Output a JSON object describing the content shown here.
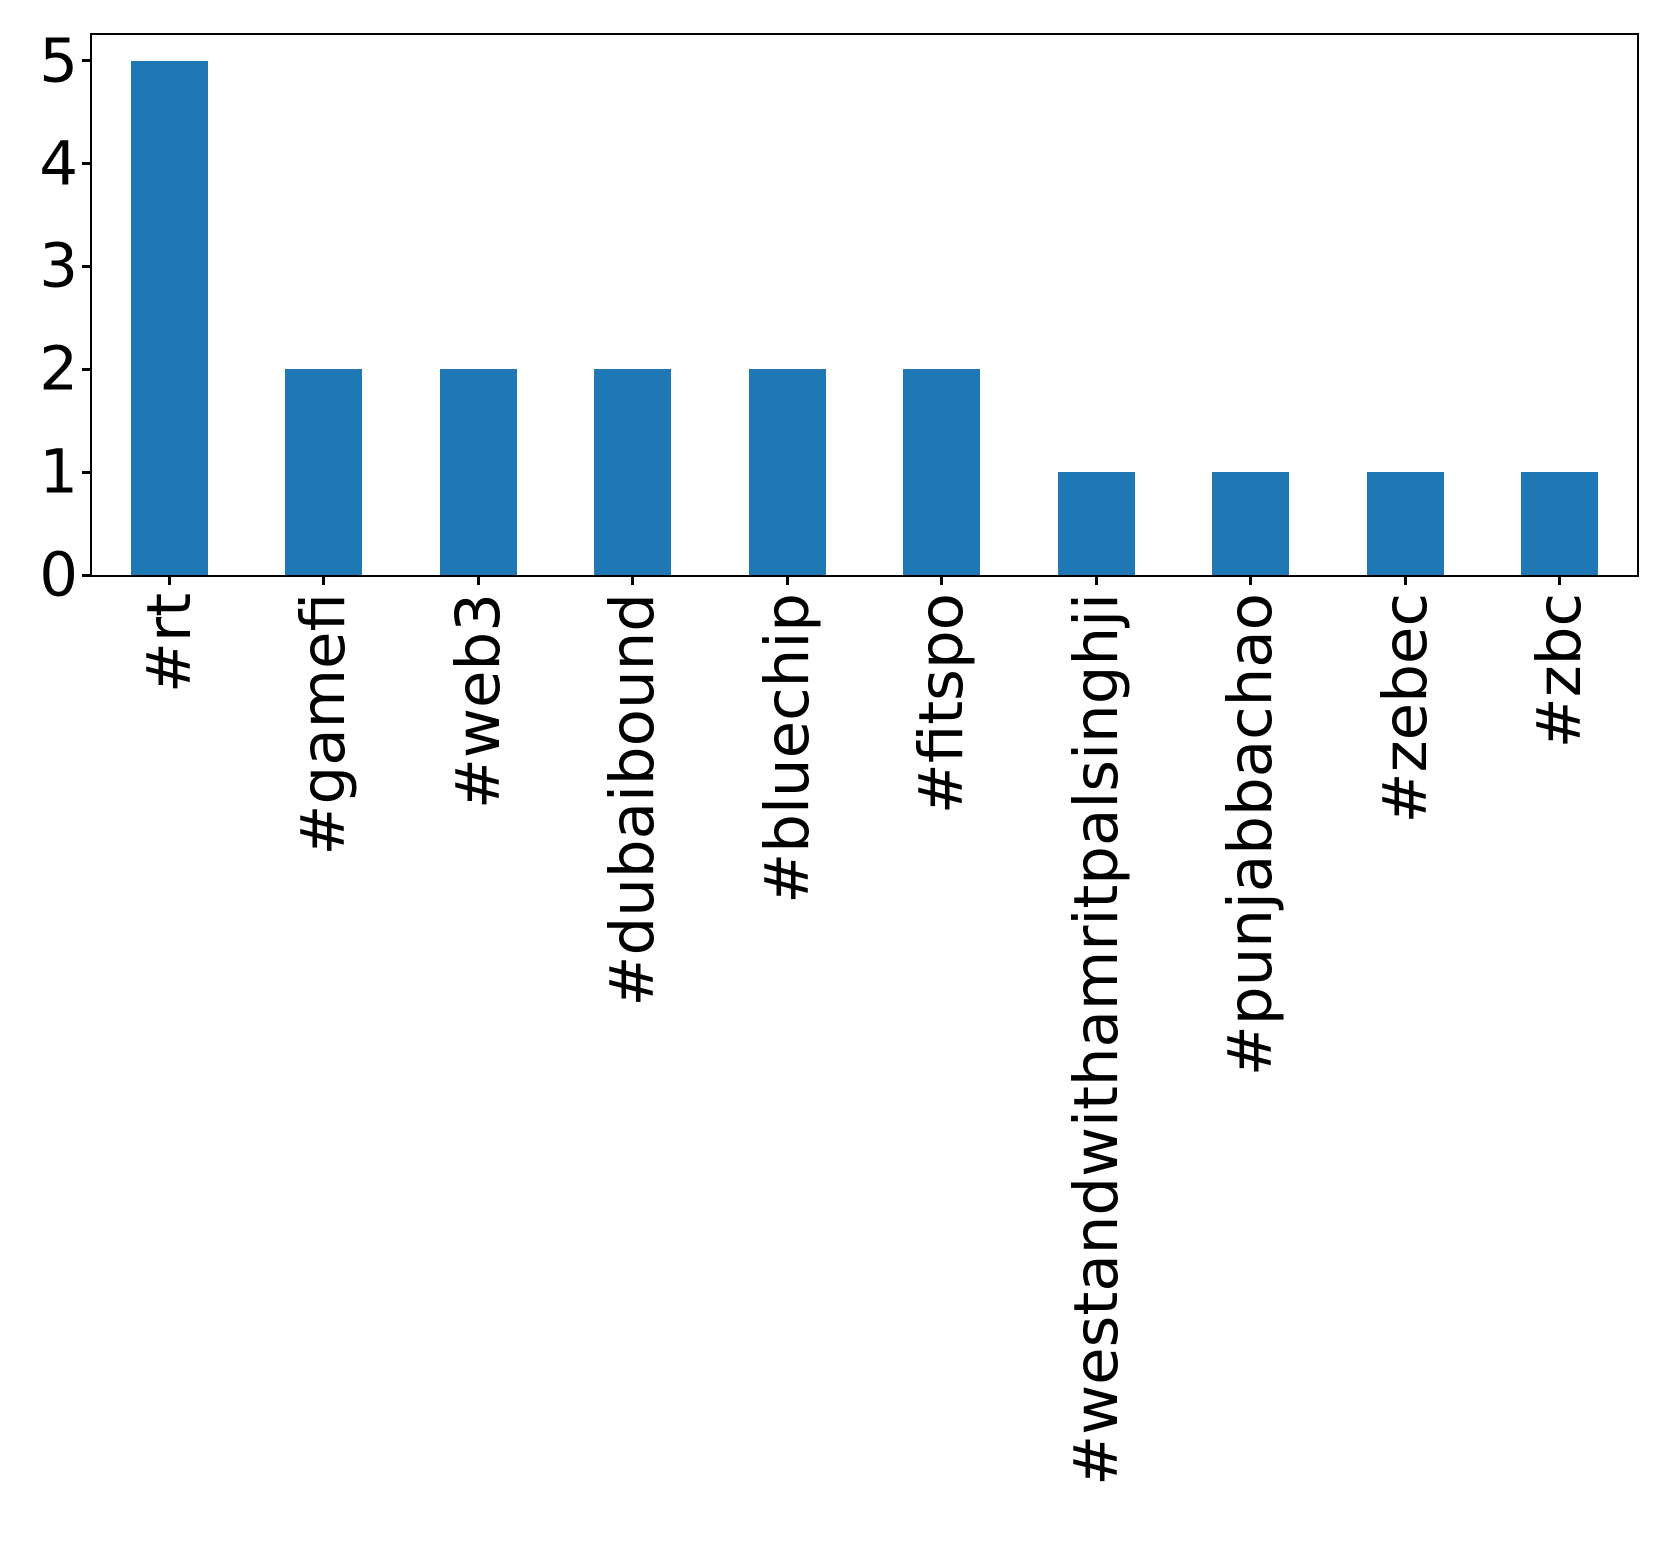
{
  "chart_data": {
    "type": "bar",
    "title": "",
    "xlabel": "",
    "ylabel": "",
    "categories": [
      "#rt",
      "#gamefi",
      "#web3",
      "#dubaibound",
      "#bluechip",
      "#fitspo",
      "#westandwithamritpalsinghji",
      "#punjabbachao",
      "#zebec",
      "#zbc"
    ],
    "values": [
      5,
      2,
      2,
      2,
      2,
      2,
      1,
      1,
      1,
      1
    ],
    "yticks": [
      0,
      1,
      2,
      3,
      4,
      5
    ],
    "ylim": [
      0,
      5.25
    ],
    "bar_color": "#1f77b4",
    "axis_color": "#000000",
    "grid": false,
    "legend": false,
    "bar_width_fraction": 0.5,
    "xtick_label_rotation_deg": 90
  }
}
